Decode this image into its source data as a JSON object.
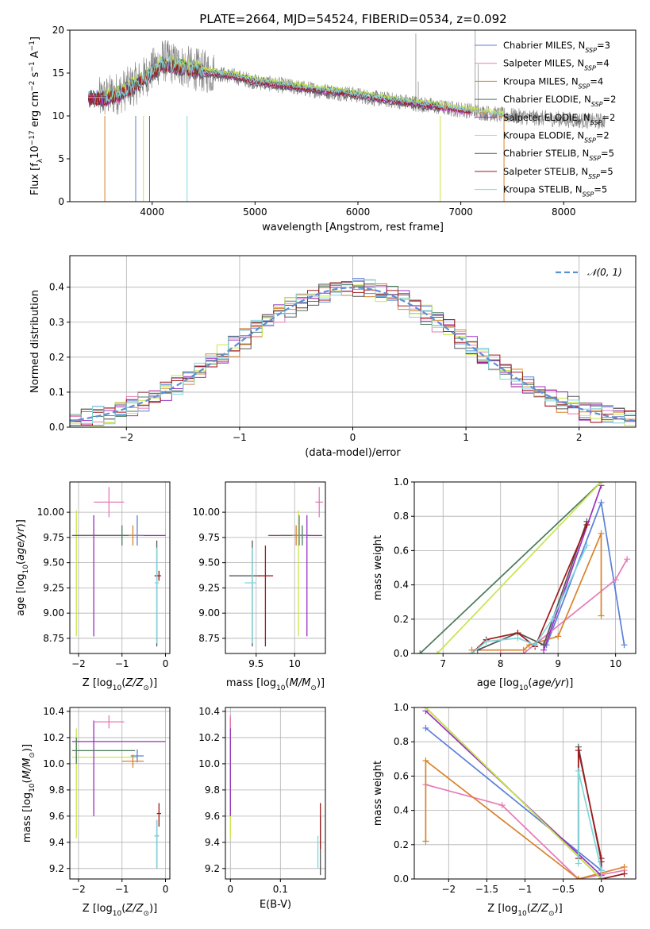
{
  "figure_title": "PLATE=2664, MJD=54524, FIBERID=0534, z=0.092",
  "series_colors": {
    "Chabrier MILES": "#5b7fd9",
    "Salpeter MILES": "#e57ab8",
    "Kroupa MILES": "#d9822b",
    "Chabrier ELODIE": "#4a7a5a",
    "Salpeter ELODIE": "#9a2fc0",
    "Kroupa ELODIE": "#c8e64a",
    "Chabrier STELIB": "#555555",
    "Salpeter STELIB": "#a01a1a",
    "Kroupa STELIB": "#7fd6dc"
  },
  "chart_data": [
    {
      "id": "spectrum",
      "type": "line",
      "title": "PLATE=2664, MJD=54524, FIBERID=0534, z=0.092",
      "xlabel": "wavelength [Angstrom, rest frame]",
      "ylabel": "Flux [f_λ 10^-17 erg cm^-2 s^-1 A^-1]",
      "xlim": [
        3200,
        8700
      ],
      "ylim": [
        0,
        20
      ],
      "xticks": [
        4000,
        5000,
        6000,
        7000,
        8000
      ],
      "yticks": [
        0,
        5,
        10,
        15,
        20
      ],
      "grid": false,
      "legend_position": "top-right",
      "legend": [
        {
          "label": "Chabrier MILES, N_SSP=3",
          "color": "#5b7fd9"
        },
        {
          "label": "Salpeter MILES, N_SSP=4",
          "color": "#e57ab8"
        },
        {
          "label": "Kroupa MILES, N_SSP=4",
          "color": "#d9822b"
        },
        {
          "label": "Chabrier ELODIE, N_SSP=2",
          "color": "#4a7a5a"
        },
        {
          "label": "Salpeter ELODIE, N_SSP=2",
          "color": "#9a2fc0"
        },
        {
          "label": "Kroupa ELODIE, N_SSP=2",
          "color": "#c8e64a"
        },
        {
          "label": "Chabrier STELIB, N_SSP=5",
          "color": "#555555"
        },
        {
          "label": "Salpeter STELIB, N_SSP=5",
          "color": "#a01a1a"
        },
        {
          "label": "Kroupa STELIB, N_SSP=5",
          "color": "#7fd6dc"
        }
      ],
      "data_series": {
        "name": "data",
        "color": "#808080",
        "x": [
          3500,
          3700,
          3900,
          4100,
          4300,
          4500,
          4800,
          5000,
          5300,
          5600,
          5900,
          6200,
          6500,
          6800,
          7100,
          7400,
          7700,
          8000,
          8300
        ],
        "y": [
          12.0,
          12.8,
          14.2,
          16.5,
          15.8,
          15.2,
          14.6,
          14.0,
          13.5,
          13.0,
          12.6,
          12.0,
          11.6,
          11.0,
          10.6,
          10.1,
          9.8,
          9.6,
          9.4
        ]
      },
      "model_series": {
        "name": "models",
        "x": [
          3400,
          3550,
          3700,
          3900,
          4100,
          4300,
          4500,
          4800,
          5000,
          5300,
          5600,
          5900,
          6200,
          6500,
          6800,
          7100,
          7400
        ],
        "y": [
          12.0,
          12.0,
          12.6,
          14.0,
          16.0,
          15.6,
          15.1,
          14.6,
          14.0,
          13.5,
          13.0,
          12.6,
          12.0,
          11.5,
          11.0,
          10.5,
          10.0
        ]
      }
    },
    {
      "id": "residuals",
      "type": "line",
      "xlabel": "(data-model)/error",
      "ylabel": "Normed distribution",
      "xlim": [
        -2.5,
        2.5
      ],
      "ylim": [
        0,
        0.49
      ],
      "xticks": [
        -2,
        -1,
        0,
        1,
        2
      ],
      "yticks": [
        0.0,
        0.1,
        0.2,
        0.3,
        0.4
      ],
      "grid": true,
      "legend_position": "top-right",
      "legend": [
        {
          "label": "𝒩(0, 1)",
          "color": "#5b8fd9",
          "style": "dashed"
        }
      ],
      "gaussian": {
        "mean": 0,
        "sigma": 1
      },
      "histogram_bin_width": 0.1
    },
    {
      "id": "age_vs_Z",
      "type": "scatter",
      "xlabel": "Z [log10(Z/Z⊙)]",
      "ylabel": "age [log10(age/yr)]",
      "xlim": [
        -2.2,
        0.1
      ],
      "ylim": [
        8.6,
        10.3
      ],
      "xticks": [
        -2,
        -1,
        0
      ],
      "yticks": [
        8.75,
        9.0,
        9.25,
        9.5,
        9.75,
        10.0
      ],
      "grid": true,
      "points": [
        {
          "series": "Kroupa ELODIE",
          "x": -2.05,
          "y": 9.77,
          "xerr": [
            0.1,
            1.4
          ],
          "yerr": [
            1.0,
            0.25
          ]
        },
        {
          "series": "Salpeter ELODIE",
          "x": -1.65,
          "y": 9.77,
          "xerr": [
            0.5,
            1.65
          ],
          "yerr": [
            1.0,
            0.2
          ]
        },
        {
          "series": "Chabrier ELODIE",
          "x": -1.0,
          "y": 9.77,
          "xerr": [
            1.0,
            0.3
          ],
          "yerr": [
            0.1,
            0.1
          ]
        },
        {
          "series": "Salpeter MILES",
          "x": -1.3,
          "y": 10.1,
          "xerr": [
            0.35,
            0.35
          ],
          "yerr": [
            0.15,
            0.15
          ]
        },
        {
          "series": "Chabrier MILES",
          "x": -0.65,
          "y": 9.77,
          "xerr": [
            0.15,
            0.15
          ],
          "yerr": [
            0.1,
            0.2
          ]
        },
        {
          "series": "Kroupa MILES",
          "x": -0.75,
          "y": 9.77,
          "xerr": [
            0.1,
            0.1
          ],
          "yerr": [
            0.1,
            0.1
          ]
        },
        {
          "series": "Chabrier STELIB",
          "x": -0.2,
          "y": 9.37,
          "xerr": [
            0.05,
            0.05
          ],
          "yerr": [
            0.7,
            0.35
          ]
        },
        {
          "series": "Salpeter STELIB",
          "x": -0.15,
          "y": 9.37,
          "xerr": [
            0.1,
            0.05
          ],
          "yerr": [
            0.05,
            0.05
          ]
        },
        {
          "series": "Kroupa STELIB",
          "x": -0.2,
          "y": 9.3,
          "xerr": [
            0.05,
            0.05
          ],
          "yerr": [
            0.6,
            0.35
          ]
        }
      ]
    },
    {
      "id": "age_vs_mass",
      "type": "scatter",
      "xlabel": "mass [log10(M/M⊙)]",
      "ylabel": "",
      "xlim": [
        9.1,
        10.4
      ],
      "ylim": [
        8.6,
        10.3
      ],
      "xticks": [
        9.5,
        10.0
      ],
      "yticks": [
        8.75,
        9.0,
        9.25,
        9.5,
        9.75,
        10.0
      ],
      "grid": true,
      "points": [
        {
          "series": "Kroupa ELODIE",
          "x": 10.05,
          "y": 9.77,
          "xerr": [
            0.4,
            0.15
          ],
          "yerr": [
            1.0,
            0.25
          ]
        },
        {
          "series": "Salpeter ELODIE",
          "x": 10.16,
          "y": 9.77,
          "xerr": [
            0.5,
            0.2
          ],
          "yerr": [
            1.0,
            0.2
          ]
        },
        {
          "series": "Chabrier ELODIE",
          "x": 10.1,
          "y": 9.77,
          "xerr": [
            0.3,
            0.1
          ],
          "yerr": [
            0.1,
            0.1
          ]
        },
        {
          "series": "Salpeter MILES",
          "x": 10.32,
          "y": 10.1,
          "xerr": [
            0.05,
            0.05
          ],
          "yerr": [
            0.15,
            0.15
          ]
        },
        {
          "series": "Chabrier MILES",
          "x": 10.06,
          "y": 9.77,
          "xerr": [
            0.1,
            0.1
          ],
          "yerr": [
            0.1,
            0.2
          ]
        },
        {
          "series": "Kroupa MILES",
          "x": 10.02,
          "y": 9.77,
          "xerr": [
            0.05,
            0.05
          ],
          "yerr": [
            0.1,
            0.1
          ]
        },
        {
          "series": "Chabrier STELIB",
          "x": 9.45,
          "y": 9.37,
          "xerr": [
            0.3,
            0.1
          ],
          "yerr": [
            0.7,
            0.35
          ]
        },
        {
          "series": "Salpeter STELIB",
          "x": 9.62,
          "y": 9.37,
          "xerr": [
            0.1,
            0.1
          ],
          "yerr": [
            0.7,
            0.3
          ]
        },
        {
          "series": "Kroupa STELIB",
          "x": 9.45,
          "y": 9.3,
          "xerr": [
            0.1,
            0.05
          ],
          "yerr": [
            0.6,
            0.35
          ]
        }
      ]
    },
    {
      "id": "weight_vs_age",
      "type": "line",
      "xlabel": "age [log10(age/yr)]",
      "ylabel": "mass weight",
      "xlim": [
        6.5,
        10.35
      ],
      "ylim": [
        0,
        1
      ],
      "xticks": [
        7,
        8,
        9,
        10
      ],
      "yticks": [
        0.0,
        0.2,
        0.4,
        0.6,
        0.8,
        1.0
      ],
      "grid": true,
      "series": [
        {
          "name": "Chabrier MILES",
          "x": [
            8.8,
            9.75,
            10.15
          ],
          "y": [
            0.05,
            0.88,
            0.05
          ]
        },
        {
          "name": "Salpeter MILES",
          "x": [
            8.0,
            8.4,
            10.0,
            10.2
          ],
          "y": [
            0.0,
            0.0,
            0.43,
            0.55
          ]
        },
        {
          "name": "Kroupa MILES",
          "x": [
            7.5,
            8.4,
            8.5,
            9.0,
            9.75,
            9.75
          ],
          "y": [
            0.02,
            0.02,
            0.05,
            0.1,
            0.7,
            0.22
          ]
        },
        {
          "name": "Chabrier ELODIE",
          "x": [
            6.6,
            9.75
          ],
          "y": [
            0.0,
            1.0
          ]
        },
        {
          "name": "Salpeter ELODIE",
          "x": [
            8.75,
            9.75
          ],
          "y": [
            0.02,
            0.98
          ]
        },
        {
          "name": "Kroupa ELODIE",
          "x": [
            6.9,
            9.75
          ],
          "y": [
            0.0,
            1.0
          ]
        },
        {
          "name": "Chabrier STELIB",
          "x": [
            7.6,
            8.3,
            8.75,
            9.5
          ],
          "y": [
            0.02,
            0.12,
            0.05,
            0.77
          ]
        },
        {
          "name": "Salpeter STELIB",
          "x": [
            7.5,
            7.75,
            8.3,
            8.6,
            9.5
          ],
          "y": [
            0.0,
            0.08,
            0.12,
            0.04,
            0.75
          ]
        },
        {
          "name": "Kroupa STELIB",
          "x": [
            7.5,
            7.75,
            8.3,
            8.6,
            8.9,
            9.5
          ],
          "y": [
            0.0,
            0.07,
            0.09,
            0.05,
            0.2,
            0.63
          ]
        }
      ]
    },
    {
      "id": "mass_vs_Z",
      "type": "scatter",
      "xlabel": "Z [log10(Z/Z⊙)]",
      "ylabel": "mass [log10(M/M⊙)]",
      "xlim": [
        -2.2,
        0.1
      ],
      "ylim": [
        9.12,
        10.43
      ],
      "xticks": [
        -2,
        -1,
        0
      ],
      "yticks": [
        9.2,
        9.4,
        9.6,
        9.8,
        10.0,
        10.2,
        10.4
      ],
      "grid": true,
      "points": [
        {
          "series": "Kroupa ELODIE",
          "x": -2.05,
          "y": 10.05,
          "xerr": [
            0.1,
            1.4
          ],
          "yerr": [
            0.62,
            0.22
          ]
        },
        {
          "series": "Salpeter ELODIE",
          "x": -1.65,
          "y": 10.17,
          "xerr": [
            0.5,
            1.65
          ],
          "yerr": [
            0.57,
            0.16
          ]
        },
        {
          "series": "Chabrier ELODIE",
          "x": -2.05,
          "y": 10.1,
          "xerr": [
            0.1,
            1.35
          ],
          "yerr": [
            0.1,
            0.1
          ]
        },
        {
          "series": "Salpeter MILES",
          "x": -1.3,
          "y": 10.32,
          "xerr": [
            0.35,
            0.35
          ],
          "yerr": [
            0.05,
            0.05
          ]
        },
        {
          "series": "Chabrier MILES",
          "x": -0.65,
          "y": 10.06,
          "xerr": [
            0.15,
            0.15
          ],
          "yerr": [
            0.05,
            0.05
          ]
        },
        {
          "series": "Kroupa MILES",
          "x": -0.75,
          "y": 10.02,
          "xerr": [
            0.25,
            0.25
          ],
          "yerr": [
            0.05,
            0.05
          ]
        },
        {
          "series": "Chabrier STELIB",
          "x": -0.2,
          "y": 9.45,
          "xerr": [
            0.05,
            0.05
          ],
          "yerr": [
            0.25,
            0.12
          ]
        },
        {
          "series": "Salpeter STELIB",
          "x": -0.15,
          "y": 9.62,
          "xerr": [
            0.05,
            0.05
          ],
          "yerr": [
            0.1,
            0.08
          ]
        },
        {
          "series": "Kroupa STELIB",
          "x": -0.2,
          "y": 9.45,
          "xerr": [
            0.05,
            0.05
          ],
          "yerr": [
            0.25,
            0.12
          ]
        }
      ]
    },
    {
      "id": "mass_vs_EBV",
      "type": "scatter",
      "xlabel": "E(B-V)",
      "ylabel": "",
      "xlim": [
        -0.01,
        0.19
      ],
      "ylim": [
        9.12,
        10.43
      ],
      "xticks": [
        0.0,
        0.1
      ],
      "yticks": [
        9.2,
        9.4,
        9.6,
        9.8,
        10.0,
        10.2,
        10.4
      ],
      "grid": true,
      "points": [
        {
          "series": "Kroupa ELODIE",
          "x": 0.0,
          "y": 10.05,
          "xerr": [
            0,
            0
          ],
          "yerr": [
            0.62,
            0.22
          ]
        },
        {
          "series": "Salpeter ELODIE",
          "x": 0.0,
          "y": 10.17,
          "xerr": [
            0,
            0
          ],
          "yerr": [
            0.57,
            0.18
          ]
        },
        {
          "series": "Salpeter MILES",
          "x": 0.0,
          "y": 10.32,
          "xerr": [
            0,
            0
          ],
          "yerr": [
            0.05,
            0.05
          ]
        },
        {
          "series": "Chabrier STELIB",
          "x": 0.18,
          "y": 9.45,
          "xerr": [
            0,
            0
          ],
          "yerr": [
            0.3,
            0.15
          ]
        },
        {
          "series": "Salpeter STELIB",
          "x": 0.18,
          "y": 9.5,
          "xerr": [
            0,
            0
          ],
          "yerr": [
            0.15,
            0.2
          ]
        },
        {
          "series": "Kroupa STELIB",
          "x": 0.175,
          "y": 9.35,
          "xerr": [
            0,
            0
          ],
          "yerr": [
            0.15,
            0.1
          ]
        }
      ]
    },
    {
      "id": "weight_vs_Z",
      "type": "line",
      "xlabel": "Z [log10(Z/Z⊙)]",
      "ylabel": "mass weight",
      "xlim": [
        -2.45,
        0.45
      ],
      "ylim": [
        0,
        1
      ],
      "xticks": [
        -2.0,
        -1.5,
        -1.0,
        -0.5,
        0.0
      ],
      "yticks": [
        0.0,
        0.2,
        0.4,
        0.6,
        0.8,
        1.0
      ],
      "grid": true,
      "series": [
        {
          "name": "Chabrier MILES",
          "x": [
            -2.3,
            0.0,
            0.0
          ],
          "y": [
            0.88,
            0.05,
            0.05
          ]
        },
        {
          "name": "Salpeter MILES",
          "x": [
            -2.3,
            -1.3,
            -0.3,
            0.3
          ],
          "y": [
            0.55,
            0.43,
            0.0,
            0.05
          ]
        },
        {
          "name": "Kroupa MILES",
          "x": [
            -2.3,
            -2.3,
            -0.3,
            0.3
          ],
          "y": [
            0.22,
            0.69,
            0.0,
            0.07
          ]
        },
        {
          "name": "Chabrier ELODIE",
          "x": [
            -2.3,
            0.0
          ],
          "y": [
            1.0,
            0.0
          ]
        },
        {
          "name": "Salpeter ELODIE",
          "x": [
            -2.3,
            0.0
          ],
          "y": [
            0.98,
            0.02
          ]
        },
        {
          "name": "Kroupa ELODIE",
          "x": [
            -2.3,
            0.0
          ],
          "y": [
            1.0,
            0.0
          ]
        },
        {
          "name": "Chabrier STELIB",
          "x": [
            -0.3,
            -0.3,
            0.0,
            0.0
          ],
          "y": [
            0.12,
            0.77,
            0.1,
            0.0
          ]
        },
        {
          "name": "Salpeter STELIB",
          "x": [
            -0.3,
            -0.3,
            0.0,
            0.0,
            0.3
          ],
          "y": [
            0.12,
            0.75,
            0.12,
            0.0,
            0.03
          ]
        },
        {
          "name": "Kroupa STELIB",
          "x": [
            -0.3,
            -0.3,
            0.0,
            0.0
          ],
          "y": [
            0.09,
            0.63,
            0.05,
            0.0
          ]
        }
      ]
    }
  ]
}
